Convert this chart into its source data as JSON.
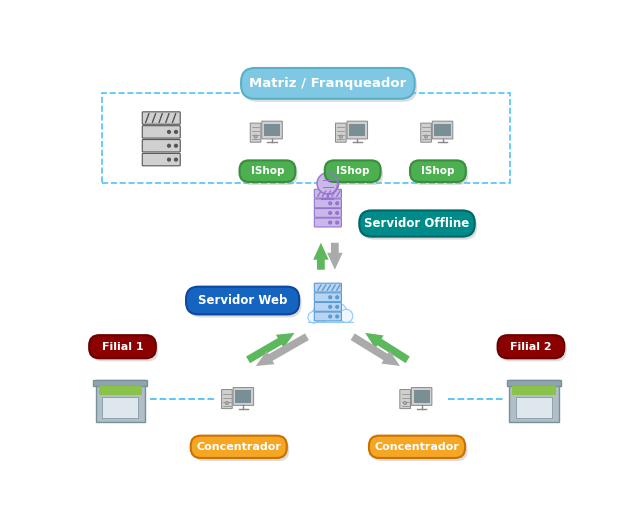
{
  "bg_color": "#ffffff",
  "fig_w": 6.39,
  "fig_h": 5.28,
  "dpi": 100,
  "labels": {
    "matriz": "Matriz / Franqueador",
    "ishop": "IShop",
    "servidor_offline": "Servidor Offline",
    "servidor_web": "Servidor Web",
    "filial1": "Filial 1",
    "filial2": "Filial 2",
    "concentrador": "Concentrador"
  },
  "colors": {
    "matriz_box": "#7EC8E3",
    "matriz_box_border": "#5aafc7",
    "ishop_box": "#4CAF50",
    "ishop_box_border": "#388E3C",
    "servidor_offline_box": "#008B8B",
    "servidor_offline_border": "#006666",
    "servidor_web_box": "#1565C0",
    "servidor_web_border": "#0D47A1",
    "filial_box": "#8B0000",
    "filial_box_border": "#6B0000",
    "concentrador_box": "#F5A623",
    "concentrador_border": "#CC7000",
    "dashed_line": "#4FC3F7",
    "arrow_green": "#5CB85C",
    "arrow_gray": "#AAAAAA",
    "server_gray_body": "#D0D0D0",
    "server_gray_border": "#555555",
    "server_offline_body": "#C9B8E8",
    "server_offline_border": "#9575CD",
    "server_web_body": "#B8D4F0",
    "server_web_border": "#5B9BD5",
    "cloud_color": "#EEF6FF",
    "cloud_border": "#90CAF9",
    "shop_wall": "#B0BEC5",
    "shop_window": "#DEE7EE",
    "shop_green": "#8BC34A",
    "shop_roof": "#90A4AE",
    "globe_color": "#C9B8E8",
    "globe_border": "#9575CD"
  },
  "layout": {
    "xlim": [
      0,
      6.39
    ],
    "ylim": [
      0,
      5.28
    ]
  }
}
